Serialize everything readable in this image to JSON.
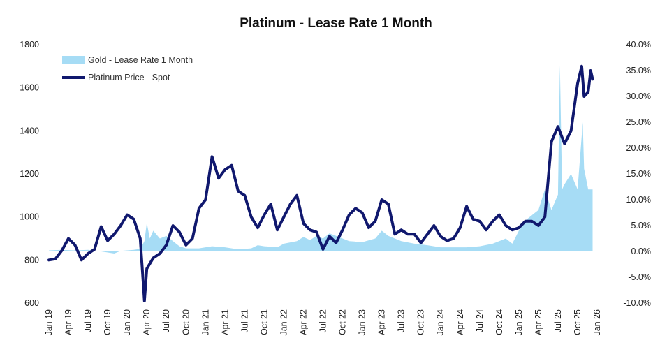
{
  "chart_data": {
    "type": "line",
    "title": "Platinum - Lease Rate 1 Month",
    "left_axis": {
      "range": [
        600,
        1800
      ],
      "ticks": [
        "600",
        "800",
        "1000",
        "1200",
        "1400",
        "1600",
        "1800"
      ],
      "tick_values": [
        600,
        800,
        1000,
        1200,
        1400,
        1600,
        1800
      ]
    },
    "right_axis": {
      "range": [
        -10,
        40
      ],
      "ticks": [
        "-10.0%",
        "-5.0%",
        "0.0%",
        "5.0%",
        "10.0%",
        "15.0%",
        "20.0%",
        "25.0%",
        "30.0%",
        "35.0%",
        "40.0%"
      ],
      "tick_values": [
        -10,
        -5,
        0,
        5,
        10,
        15,
        20,
        25,
        30,
        35,
        40
      ]
    },
    "x_axis": {
      "range": [
        "2019-01",
        "2026-01"
      ],
      "ticks": [
        "Jan 19",
        "Apr 19",
        "Jul 19",
        "Oct 19",
        "Jan 20",
        "Apr 20",
        "Jul 20",
        "Oct 20",
        "Jan 21",
        "Apr 21",
        "Jul 21",
        "Oct 21",
        "Jan 22",
        "Apr 22",
        "Jul 22",
        "Oct 22",
        "Jan 23",
        "Apr 23",
        "Jul 23",
        "Oct 23",
        "Jan 24",
        "Apr 24",
        "Jul 24",
        "Oct 24",
        "Jan 25",
        "Apr 25",
        "Jul 25",
        "Oct 25",
        "Jan 26"
      ]
    },
    "grid": false,
    "legend": {
      "position": "top-left",
      "entries": [
        "Gold - Lease Rate 1 Month",
        "Platinum Price - Spot"
      ]
    },
    "series": [
      {
        "name": "Gold - Lease Rate 1 Month",
        "kind": "area",
        "axis": "right",
        "color": "#a6dcf5",
        "points": [
          [
            "2019-01",
            0.2
          ],
          [
            "2019-03",
            0.3
          ],
          [
            "2019-05",
            0.2
          ],
          [
            "2019-07",
            0.3
          ],
          [
            "2019-09",
            0.0
          ],
          [
            "2019-11",
            -0.4
          ],
          [
            "2019-12",
            0.1
          ],
          [
            "2020-01",
            0.2
          ],
          [
            "2020-02",
            0.3
          ],
          [
            "2020-03",
            0.5
          ],
          [
            "2020-03-20",
            2.0
          ],
          [
            "2020-04",
            5.5
          ],
          [
            "2020-04-15",
            2.5
          ],
          [
            "2020-05",
            4.0
          ],
          [
            "2020-06",
            2.5
          ],
          [
            "2020-07",
            3.0
          ],
          [
            "2020-08",
            2.0
          ],
          [
            "2020-09",
            1.0
          ],
          [
            "2020-10",
            0.6
          ],
          [
            "2020-12",
            0.6
          ],
          [
            "2021-02",
            1.0
          ],
          [
            "2021-04",
            0.8
          ],
          [
            "2021-06",
            0.4
          ],
          [
            "2021-08",
            0.6
          ],
          [
            "2021-09",
            1.2
          ],
          [
            "2021-10",
            1.0
          ],
          [
            "2021-12",
            0.8
          ],
          [
            "2022-01",
            1.5
          ],
          [
            "2022-03",
            2.0
          ],
          [
            "2022-04",
            2.8
          ],
          [
            "2022-05",
            2.2
          ],
          [
            "2022-06",
            3.0
          ],
          [
            "2022-07",
            2.5
          ],
          [
            "2022-08",
            3.5
          ],
          [
            "2022-09",
            3.0
          ],
          [
            "2022-11",
            2.0
          ],
          [
            "2023-01",
            1.8
          ],
          [
            "2023-03",
            2.5
          ],
          [
            "2023-04",
            4.0
          ],
          [
            "2023-05",
            3.0
          ],
          [
            "2023-07",
            2.0
          ],
          [
            "2023-09",
            1.5
          ],
          [
            "2023-11",
            1.2
          ],
          [
            "2024-01",
            0.8
          ],
          [
            "2024-03",
            0.8
          ],
          [
            "2024-05",
            0.8
          ],
          [
            "2024-07",
            1.0
          ],
          [
            "2024-09",
            1.5
          ],
          [
            "2024-10",
            2.0
          ],
          [
            "2024-11",
            2.5
          ],
          [
            "2024-12",
            1.5
          ],
          [
            "2025-01",
            4.0
          ],
          [
            "2025-02",
            6.0
          ],
          [
            "2025-03",
            7.0
          ],
          [
            "2025-04",
            8.0
          ],
          [
            "2025-05",
            12.0
          ],
          [
            "2025-06",
            8.0
          ],
          [
            "2025-07",
            11.0
          ],
          [
            "2025-07-10",
            36.0
          ],
          [
            "2025-07-20",
            12.0
          ],
          [
            "2025-08",
            13.0
          ],
          [
            "2025-09",
            15.0
          ],
          [
            "2025-10",
            12.0
          ],
          [
            "2025-10-25",
            25.0
          ],
          [
            "2025-11",
            16.0
          ],
          [
            "2025-11-20",
            12.0
          ],
          [
            "2025-12-10",
            12.0
          ]
        ]
      },
      {
        "name": "Platinum Price - Spot",
        "kind": "line",
        "axis": "left",
        "color": "#10186e",
        "points": [
          [
            "2019-01",
            800
          ],
          [
            "2019-02",
            805
          ],
          [
            "2019-03",
            845
          ],
          [
            "2019-04",
            900
          ],
          [
            "2019-05",
            870
          ],
          [
            "2019-06",
            800
          ],
          [
            "2019-07",
            830
          ],
          [
            "2019-08",
            850
          ],
          [
            "2019-09",
            955
          ],
          [
            "2019-10",
            890
          ],
          [
            "2019-11",
            920
          ],
          [
            "2019-12",
            960
          ],
          [
            "2020-01",
            1010
          ],
          [
            "2020-02",
            990
          ],
          [
            "2020-03",
            900
          ],
          [
            "2020-03-20",
            610
          ],
          [
            "2020-04",
            760
          ],
          [
            "2020-05",
            810
          ],
          [
            "2020-06",
            830
          ],
          [
            "2020-07",
            870
          ],
          [
            "2020-08",
            960
          ],
          [
            "2020-09",
            930
          ],
          [
            "2020-10",
            870
          ],
          [
            "2020-11",
            900
          ],
          [
            "2020-12",
            1040
          ],
          [
            "2021-01",
            1080
          ],
          [
            "2021-02",
            1280
          ],
          [
            "2021-03",
            1180
          ],
          [
            "2021-04",
            1220
          ],
          [
            "2021-05",
            1240
          ],
          [
            "2021-06",
            1120
          ],
          [
            "2021-07",
            1100
          ],
          [
            "2021-08",
            1000
          ],
          [
            "2021-09",
            950
          ],
          [
            "2021-10",
            1010
          ],
          [
            "2021-11",
            1060
          ],
          [
            "2021-12",
            940
          ],
          [
            "2022-01",
            1000
          ],
          [
            "2022-02",
            1060
          ],
          [
            "2022-03",
            1100
          ],
          [
            "2022-04",
            970
          ],
          [
            "2022-05",
            940
          ],
          [
            "2022-06",
            930
          ],
          [
            "2022-07",
            850
          ],
          [
            "2022-08",
            910
          ],
          [
            "2022-09",
            880
          ],
          [
            "2022-10",
            940
          ],
          [
            "2022-11",
            1010
          ],
          [
            "2022-12",
            1040
          ],
          [
            "2023-01",
            1020
          ],
          [
            "2023-02",
            950
          ],
          [
            "2023-03",
            980
          ],
          [
            "2023-04",
            1080
          ],
          [
            "2023-05",
            1060
          ],
          [
            "2023-06",
            920
          ],
          [
            "2023-07",
            940
          ],
          [
            "2023-08",
            920
          ],
          [
            "2023-09",
            920
          ],
          [
            "2023-10",
            880
          ],
          [
            "2023-11",
            920
          ],
          [
            "2023-12",
            960
          ],
          [
            "2024-01",
            910
          ],
          [
            "2024-02",
            890
          ],
          [
            "2024-03",
            900
          ],
          [
            "2024-04",
            950
          ],
          [
            "2024-05",
            1050
          ],
          [
            "2024-06",
            990
          ],
          [
            "2024-07",
            980
          ],
          [
            "2024-08",
            940
          ],
          [
            "2024-09",
            980
          ],
          [
            "2024-10",
            1010
          ],
          [
            "2024-11",
            960
          ],
          [
            "2024-12",
            940
          ],
          [
            "2025-01",
            950
          ],
          [
            "2025-02",
            980
          ],
          [
            "2025-03",
            980
          ],
          [
            "2025-04",
            960
          ],
          [
            "2025-05",
            1000
          ],
          [
            "2025-06",
            1350
          ],
          [
            "2025-07",
            1420
          ],
          [
            "2025-08",
            1340
          ],
          [
            "2025-09",
            1400
          ],
          [
            "2025-10",
            1620
          ],
          [
            "2025-10-20",
            1700
          ],
          [
            "2025-11",
            1560
          ],
          [
            "2025-11-20",
            1580
          ],
          [
            "2025-12",
            1680
          ],
          [
            "2025-12-10",
            1640
          ]
        ]
      }
    ]
  }
}
